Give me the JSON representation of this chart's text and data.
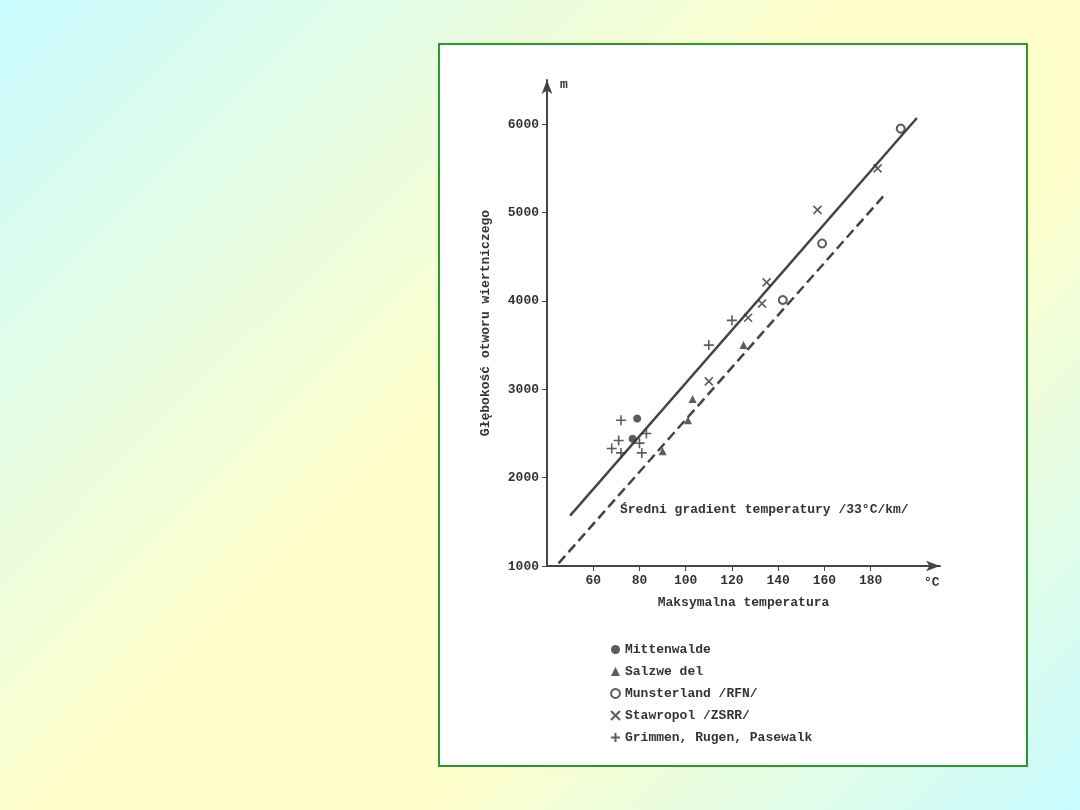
{
  "chart_data": {
    "type": "scatter",
    "xlabel": "Maksymalna temperatura",
    "ylabel": "Głębokość otworu wiertniczego",
    "annotations": [
      "m",
      "°C",
      "Średni gradient temperatury /33°C/km/"
    ],
    "xlim": [
      40,
      210
    ],
    "xticks": [
      60,
      80,
      100,
      120,
      140,
      160,
      180
    ],
    "ylim": [
      1000,
      6500
    ],
    "yticks": [
      1000,
      2000,
      3000,
      4000,
      5000,
      6000
    ],
    "grid": false,
    "legend": "bottom",
    "series": [
      {
        "name": "Mittenwalde",
        "color": "#333333",
        "marker": "circle",
        "x": [
          79,
          77
        ],
        "values": [
          2670,
          2440
        ]
      },
      {
        "name": "Salzwe del",
        "color": "#333333",
        "marker": "triangle",
        "x": [
          90,
          101,
          103,
          125
        ],
        "values": [
          2300,
          2650,
          2890,
          3500
        ]
      },
      {
        "name": "Munsterland /RFN/",
        "color": "#333333",
        "marker": "circle-open",
        "x": [
          193,
          159,
          142
        ],
        "values": [
          5950,
          4650,
          4010
        ]
      },
      {
        "name": "Stawropol /ZSRR/",
        "color": "#333333",
        "marker": "cross",
        "x": [
          157,
          183,
          135,
          127,
          133,
          110
        ],
        "values": [
          5030,
          5500,
          4210,
          3810,
          3970,
          3090
        ]
      },
      {
        "name": "Grimmen, Rugen, Pasewalk",
        "color": "#333333",
        "marker": "plus",
        "x": [
          72,
          71,
          68,
          72,
          81,
          80,
          83,
          110,
          120
        ],
        "values": [
          2650,
          2420,
          2330,
          2280,
          2280,
          2390,
          2500,
          3500,
          3780
        ]
      },
      {
        "type": "line",
        "color": "#444444",
        "line_style": "solid",
        "x": [
          50,
          200
        ],
        "values": [
          1570,
          6070
        ]
      },
      {
        "type": "line",
        "color": "#444444",
        "line_style": "dashed",
        "x": [
          45,
          186
        ],
        "values": [
          1030,
          5200
        ]
      }
    ]
  }
}
